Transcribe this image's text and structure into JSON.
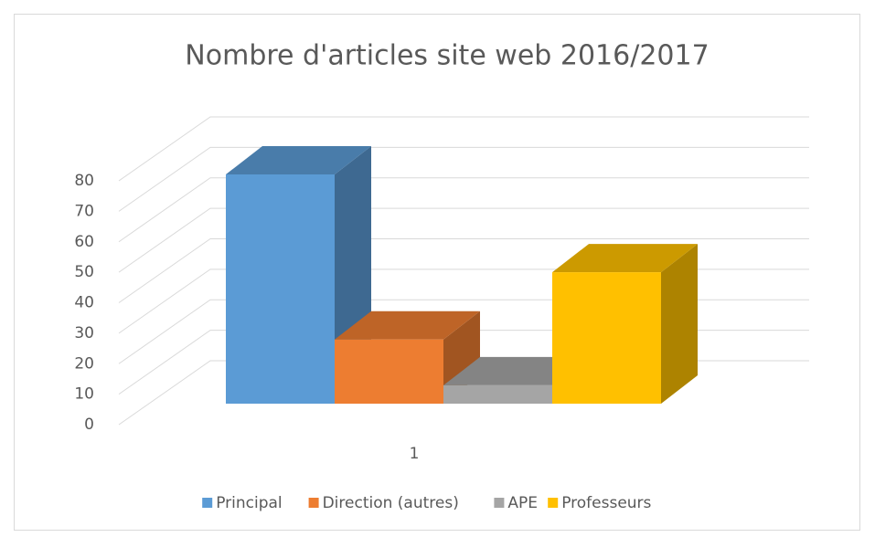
{
  "chart_data": {
    "type": "bar3d",
    "title": "Nombre d'articles site web 2016/2017",
    "categories": [
      "1"
    ],
    "series": [
      {
        "name": "Principal",
        "color": "#5b9bd5",
        "values": [
          75
        ]
      },
      {
        "name": "Direction (autres)",
        "color": "#ed7d31",
        "values": [
          21
        ]
      },
      {
        "name": "APE",
        "color": "#a5a5a5",
        "values": [
          6
        ]
      },
      {
        "name": "Professeurs",
        "color": "#ffc000",
        "values": [
          43
        ]
      }
    ],
    "ylim": [
      0,
      80
    ],
    "yticks": [
      0,
      10,
      20,
      30,
      40,
      50,
      60,
      70,
      80
    ],
    "grid": true,
    "legend": "bottom"
  }
}
